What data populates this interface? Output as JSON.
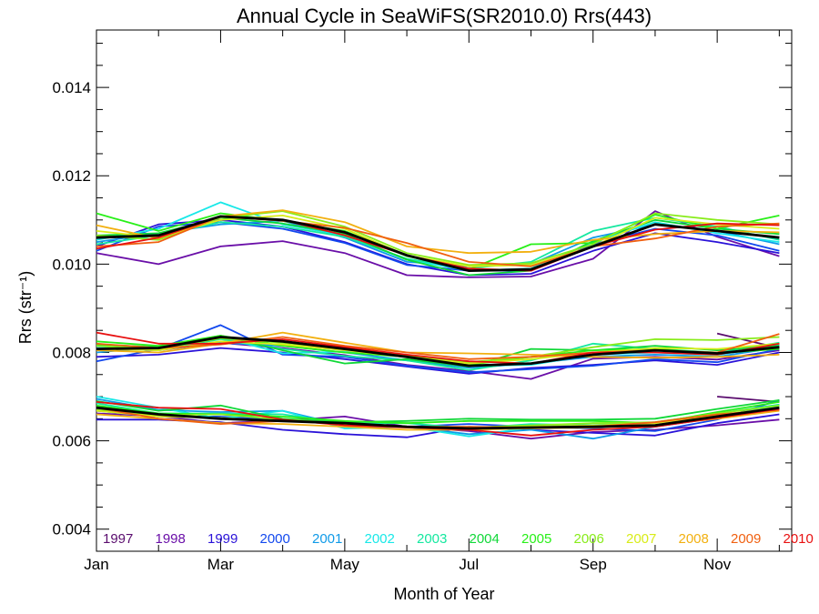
{
  "chart_data": {
    "type": "line",
    "title": "Annual Cycle in SeaWiFS(SR2010.0) Rrs(443)",
    "xlabel": "Month of Year",
    "ylabel": "Rrs (str⁻¹)",
    "x": [
      1,
      2,
      3,
      4,
      5,
      6,
      7,
      8,
      9,
      10,
      11,
      12
    ],
    "xlim": [
      1,
      12.2
    ],
    "ylim": [
      0.0035,
      0.0153
    ],
    "x_ticks": [
      {
        "value": 1,
        "label": "Jan"
      },
      {
        "value": 3,
        "label": "Mar"
      },
      {
        "value": 5,
        "label": "May"
      },
      {
        "value": 7,
        "label": "Jul"
      },
      {
        "value": 9,
        "label": "Sep"
      },
      {
        "value": 11,
        "label": "Nov"
      }
    ],
    "y_ticks": [
      {
        "value": 0.004,
        "label": "0.004"
      },
      {
        "value": 0.006,
        "label": "0.006"
      },
      {
        "value": 0.008,
        "label": "0.008"
      },
      {
        "value": 0.01,
        "label": "0.010"
      },
      {
        "value": 0.012,
        "label": "0.012"
      },
      {
        "value": 0.014,
        "label": "0.014"
      }
    ],
    "grid": false,
    "legend_position": "bottom",
    "series": [
      {
        "name": "1997",
        "color": "#5a0c6e",
        "upper": [
          null,
          null,
          null,
          null,
          null,
          null,
          null,
          null,
          null,
          null,
          null,
          null
        ],
        "middle": [
          null,
          null,
          null,
          null,
          null,
          null,
          null,
          null,
          null,
          null,
          0.00843,
          0.0081
        ],
        "lower": [
          null,
          null,
          null,
          null,
          null,
          null,
          null,
          null,
          null,
          null,
          0.007,
          0.00688
        ]
      },
      {
        "name": "1998",
        "color": "#6a0fa8",
        "upper": [
          0.01025,
          0.01,
          0.0104,
          0.01052,
          0.01025,
          0.00975,
          0.0097,
          0.00972,
          0.01012,
          0.0112,
          0.01062,
          0.01018
        ],
        "middle": [
          0.0081,
          0.00805,
          0.00822,
          0.0081,
          0.00794,
          0.00772,
          0.00758,
          0.0074,
          0.00786,
          0.0079,
          0.00784,
          0.00805
        ],
        "lower": [
          0.00662,
          0.00656,
          0.0064,
          0.00646,
          0.00655,
          0.00632,
          0.00622,
          0.00605,
          0.0062,
          0.00625,
          0.00635,
          0.00648
        ]
      },
      {
        "name": "1999",
        "color": "#2a12d8",
        "upper": [
          0.0104,
          0.0109,
          0.011,
          0.01085,
          0.0105,
          0.01,
          0.00975,
          0.00978,
          0.0103,
          0.0107,
          0.0105,
          0.01025
        ],
        "middle": [
          0.0079,
          0.00795,
          0.0081,
          0.008,
          0.00785,
          0.00768,
          0.00752,
          0.00765,
          0.00772,
          0.00782,
          0.00772,
          0.008
        ],
        "lower": [
          0.00648,
          0.00648,
          0.00642,
          0.00625,
          0.00615,
          0.00608,
          0.00632,
          0.00625,
          0.00618,
          0.00612,
          0.0064,
          0.0066
        ]
      },
      {
        "name": "2000",
        "color": "#1248ee",
        "upper": [
          0.0103,
          0.01085,
          0.01095,
          0.0108,
          0.01048,
          0.00998,
          0.00985,
          0.00985,
          0.01045,
          0.0108,
          0.01065,
          0.0103
        ],
        "middle": [
          0.0078,
          0.00808,
          0.00862,
          0.00795,
          0.0079,
          0.0077,
          0.00755,
          0.00762,
          0.0077,
          0.00785,
          0.00778,
          0.00808
        ],
        "lower": [
          0.00668,
          0.00655,
          0.00655,
          0.00648,
          0.00642,
          0.00632,
          0.00638,
          0.00632,
          0.00628,
          0.00622,
          0.00648,
          0.00692
        ]
      },
      {
        "name": "2001",
        "color": "#0f9ae8",
        "upper": [
          0.0105,
          0.0107,
          0.0109,
          0.01098,
          0.0106,
          0.01005,
          0.00995,
          0.01,
          0.0106,
          0.0109,
          0.01075,
          0.01045
        ],
        "middle": [
          0.008,
          0.00812,
          0.00822,
          0.00815,
          0.008,
          0.00782,
          0.00765,
          0.00775,
          0.0079,
          0.00795,
          0.0079,
          0.00812
        ],
        "lower": [
          0.00695,
          0.0067,
          0.00665,
          0.00668,
          0.00635,
          0.00632,
          0.00615,
          0.00625,
          0.00605,
          0.00632,
          0.00652,
          0.00682
        ]
      },
      {
        "name": "2002",
        "color": "#18e8e8",
        "upper": [
          0.01055,
          0.0108,
          0.0114,
          0.0109,
          0.01065,
          0.0101,
          0.00985,
          0.0099,
          0.0105,
          0.01095,
          0.0107,
          0.0105
        ],
        "middle": [
          0.0081,
          0.00812,
          0.00835,
          0.00798,
          0.00802,
          0.0079,
          0.0077,
          0.00772,
          0.00795,
          0.008,
          0.00794,
          0.00818
        ],
        "lower": [
          0.007,
          0.00675,
          0.0065,
          0.00668,
          0.00628,
          0.00632,
          0.0061,
          0.0063,
          0.0064,
          0.00635,
          0.00655,
          0.00678
        ]
      },
      {
        "name": "2003",
        "color": "#15e8a0",
        "upper": [
          0.01045,
          0.01065,
          0.01095,
          0.01085,
          0.01062,
          0.01012,
          0.0099,
          0.01005,
          0.01075,
          0.01105,
          0.01085,
          0.01055
        ],
        "middle": [
          0.00815,
          0.00805,
          0.0083,
          0.00808,
          0.00792,
          0.00782,
          0.0076,
          0.00782,
          0.0082,
          0.00808,
          0.008,
          0.00822
        ],
        "lower": [
          0.00685,
          0.00662,
          0.00662,
          0.0066,
          0.0064,
          0.0064,
          0.00628,
          0.00638,
          0.00635,
          0.00642,
          0.00662,
          0.00682
        ]
      },
      {
        "name": "2004",
        "color": "#10d838",
        "upper": [
          0.01065,
          0.0107,
          0.01105,
          0.01092,
          0.01068,
          0.0101,
          0.00975,
          0.00985,
          0.01052,
          0.011,
          0.0108,
          0.01068
        ],
        "middle": [
          0.00818,
          0.00812,
          0.00838,
          0.00805,
          0.00775,
          0.00785,
          0.00768,
          0.00808,
          0.00805,
          0.00815,
          0.00805,
          0.00815
        ],
        "lower": [
          0.0069,
          0.00668,
          0.0068,
          0.0065,
          0.00642,
          0.00645,
          0.0065,
          0.00648,
          0.00648,
          0.0065,
          0.00672,
          0.00692
        ]
      },
      {
        "name": "2005",
        "color": "#28f018",
        "upper": [
          0.01115,
          0.01075,
          0.01115,
          0.01098,
          0.01075,
          0.01018,
          0.00988,
          0.01045,
          0.01048,
          0.01112,
          0.0108,
          0.0111
        ],
        "middle": [
          0.00825,
          0.00815,
          0.00838,
          0.00815,
          0.008,
          0.0079,
          0.00772,
          0.0079,
          0.00805,
          0.00808,
          0.00798,
          0.00808
        ],
        "lower": [
          0.0068,
          0.00662,
          0.0066,
          0.00655,
          0.00645,
          0.0064,
          0.00645,
          0.00645,
          0.00645,
          0.0064,
          0.00665,
          0.00688
        ]
      },
      {
        "name": "2006",
        "color": "#88ec1a",
        "upper": [
          0.01065,
          0.01055,
          0.01105,
          0.0112,
          0.01085,
          0.01025,
          0.00998,
          0.01002,
          0.01045,
          0.01115,
          0.011,
          0.0109
        ],
        "middle": [
          0.00815,
          0.00808,
          0.00832,
          0.00822,
          0.00808,
          0.00792,
          0.00778,
          0.0079,
          0.00812,
          0.0083,
          0.00828,
          0.00835
        ],
        "lower": [
          0.0067,
          0.00658,
          0.0066,
          0.00648,
          0.0064,
          0.00632,
          0.0063,
          0.00635,
          0.0064,
          0.00642,
          0.00662,
          0.0068
        ]
      },
      {
        "name": "2007",
        "color": "#d8ec18",
        "upper": [
          0.01075,
          0.0106,
          0.011,
          0.0111,
          0.0108,
          0.0102,
          0.00995,
          0.00998,
          0.0104,
          0.01105,
          0.0109,
          0.0108
        ],
        "middle": [
          0.00808,
          0.00805,
          0.00825,
          0.00818,
          0.00805,
          0.0079,
          0.00775,
          0.00785,
          0.008,
          0.0081,
          0.00808,
          0.0082
        ],
        "lower": [
          0.00668,
          0.00655,
          0.00652,
          0.00645,
          0.00638,
          0.0063,
          0.00628,
          0.00632,
          0.00635,
          0.0064,
          0.00658,
          0.00675
        ]
      },
      {
        "name": "2008",
        "color": "#f2b010",
        "upper": [
          0.01088,
          0.01058,
          0.01108,
          0.01122,
          0.01095,
          0.0104,
          0.01025,
          0.01028,
          0.01055,
          0.01068,
          0.01075,
          0.01072
        ],
        "middle": [
          0.00805,
          0.008,
          0.0082,
          0.00845,
          0.00822,
          0.008,
          0.00798,
          0.00795,
          0.0079,
          0.00788,
          0.0079,
          0.00795
        ],
        "lower": [
          0.0066,
          0.0065,
          0.0064,
          0.00638,
          0.00632,
          0.00625,
          0.00625,
          0.00628,
          0.0063,
          0.00635,
          0.0065,
          0.00668
        ]
      },
      {
        "name": "2009",
        "color": "#f06010",
        "upper": [
          0.0104,
          0.0105,
          0.01108,
          0.01098,
          0.01082,
          0.01048,
          0.01005,
          0.00995,
          0.0104,
          0.01058,
          0.01085,
          0.01092
        ],
        "middle": [
          0.0082,
          0.0081,
          0.00818,
          0.00835,
          0.00815,
          0.008,
          0.00785,
          0.0079,
          0.008,
          0.00805,
          0.008,
          0.00842
        ],
        "lower": [
          0.00675,
          0.0065,
          0.00638,
          0.00645,
          0.0064,
          0.00632,
          0.00632,
          0.0063,
          0.00632,
          0.00642,
          0.0066,
          0.0067
        ]
      },
      {
        "name": "2010",
        "color": "#e81010",
        "upper": [
          0.01035,
          0.0106,
          0.01108,
          0.011,
          0.01065,
          0.0102,
          0.0099,
          0.00985,
          0.0104,
          0.01078,
          0.01092,
          0.01088
        ],
        "middle": [
          0.00845,
          0.0082,
          0.0082,
          0.0083,
          0.00812,
          0.00795,
          0.0078,
          0.00775,
          0.008,
          0.008,
          0.00795,
          0.0082
        ],
        "lower": [
          0.00688,
          0.00675,
          0.00672,
          0.00648,
          0.00635,
          0.0063,
          0.00625,
          0.00612,
          0.00625,
          0.00632,
          0.00652,
          0.00672
        ]
      }
    ],
    "mean": {
      "color": "#000000",
      "upper": [
        0.0106,
        0.01065,
        0.01108,
        0.011,
        0.01072,
        0.0102,
        0.00985,
        0.00988,
        0.0104,
        0.0109,
        0.01075,
        0.0106
      ],
      "middle": [
        0.00808,
        0.0081,
        0.00835,
        0.00825,
        0.00808,
        0.0079,
        0.0077,
        0.00775,
        0.00795,
        0.00805,
        0.00798,
        0.00812
      ],
      "lower": [
        0.00675,
        0.0066,
        0.0065,
        0.00645,
        0.0064,
        0.00632,
        0.00628,
        0.0063,
        0.00632,
        0.00635,
        0.00655,
        0.00675
      ]
    }
  }
}
